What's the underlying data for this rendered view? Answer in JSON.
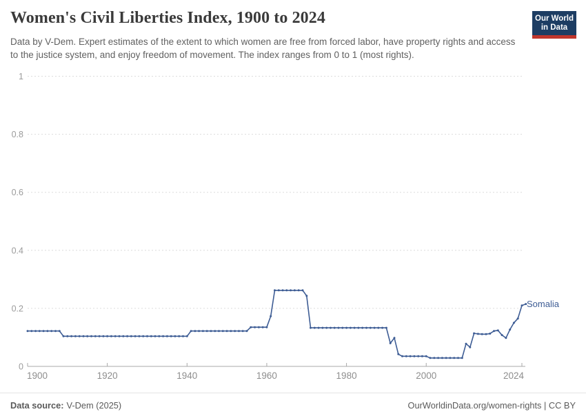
{
  "header": {
    "title": "Women's Civil Liberties Index, 1900 to 2024",
    "subtitle": "Data by V-Dem. Expert estimates of the extent to which women are free from forced labor, have property rights and access to the justice system, and enjoy freedom of movement. The index ranges from 0 to 1 (most rights)."
  },
  "logo": {
    "line1": "Our World",
    "line2": "in Data",
    "bg_color": "#1d3d63",
    "accent_color": "#c0362c"
  },
  "footer": {
    "source_label": "Data source:",
    "source_value": "V-Dem (2025)",
    "link": "OurWorldinData.org/women-rights | CC BY"
  },
  "chart_data": {
    "type": "line",
    "title": "Women's Civil Liberties Index, 1900 to 2024",
    "xlabel": "",
    "ylabel": "",
    "x_range": [
      1900,
      2024
    ],
    "xticks": [
      1900,
      1920,
      1940,
      1960,
      1980,
      2000,
      2024
    ],
    "yticks": [
      0,
      0.2,
      0.4,
      0.6,
      0.8,
      1
    ],
    "ylim": [
      0,
      1
    ],
    "grid": "horizontal-dashed",
    "legend": "end-of-line-label",
    "colors": {
      "gridline": "#dcdcdc",
      "axis": "#a8a8a8",
      "tick_label": "#8e8e8e"
    },
    "series": [
      {
        "name": "Somalia",
        "color": "#3d5c94",
        "values": [
          0.122,
          0.122,
          0.122,
          0.122,
          0.122,
          0.122,
          0.122,
          0.122,
          0.122,
          0.104,
          0.104,
          0.104,
          0.104,
          0.104,
          0.104,
          0.104,
          0.104,
          0.104,
          0.104,
          0.104,
          0.104,
          0.104,
          0.104,
          0.104,
          0.104,
          0.104,
          0.104,
          0.104,
          0.104,
          0.104,
          0.104,
          0.104,
          0.104,
          0.104,
          0.104,
          0.104,
          0.104,
          0.104,
          0.104,
          0.104,
          0.104,
          0.122,
          0.122,
          0.122,
          0.122,
          0.122,
          0.122,
          0.122,
          0.122,
          0.122,
          0.122,
          0.122,
          0.122,
          0.122,
          0.122,
          0.122,
          0.135,
          0.135,
          0.135,
          0.135,
          0.135,
          0.173,
          0.262,
          0.262,
          0.262,
          0.262,
          0.262,
          0.262,
          0.262,
          0.262,
          0.243,
          0.133,
          0.133,
          0.133,
          0.133,
          0.133,
          0.133,
          0.133,
          0.133,
          0.133,
          0.133,
          0.133,
          0.133,
          0.133,
          0.133,
          0.133,
          0.133,
          0.133,
          0.133,
          0.133,
          0.133,
          0.08,
          0.098,
          0.042,
          0.035,
          0.035,
          0.035,
          0.035,
          0.035,
          0.035,
          0.035,
          0.029,
          0.029,
          0.029,
          0.029,
          0.029,
          0.029,
          0.029,
          0.029,
          0.029,
          0.078,
          0.066,
          0.114,
          0.112,
          0.111,
          0.111,
          0.113,
          0.122,
          0.124,
          0.108,
          0.098,
          0.127,
          0.15,
          0.165,
          0.21,
          0.215
        ]
      }
    ]
  }
}
